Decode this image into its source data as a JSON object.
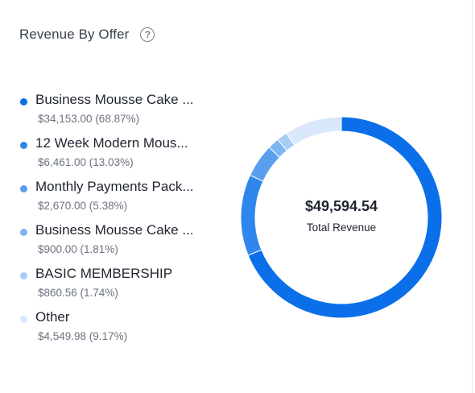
{
  "header": {
    "title": "Revenue By Offer",
    "help_icon": "question-circle-icon"
  },
  "legend": {
    "items": [
      {
        "label": "Business Mousse Cake ...",
        "value_text": "$34,153.00 (68.87%)",
        "color": "#0a6fe8"
      },
      {
        "label": "12 Week Modern Mous...",
        "value_text": "$6,461.00 (13.03%)",
        "color": "#2f86ec"
      },
      {
        "label": "Monthly Payments Pack...",
        "value_text": "$2,670.00 (5.38%)",
        "color": "#5a9fef"
      },
      {
        "label": "Business Mousse Cake ...",
        "value_text": "$900.00 (1.81%)",
        "color": "#7db4f2"
      },
      {
        "label": "BASIC MEMBERSHIP",
        "value_text": "$860.56 (1.74%)",
        "color": "#a8cdf6"
      },
      {
        "label": "Other",
        "value_text": "$4,549.98 (9.17%)",
        "color": "#d9e8fb"
      }
    ]
  },
  "center": {
    "total_value": "$49,594.54",
    "total_label": "Total Revenue"
  },
  "chart_data": {
    "type": "pie",
    "donut": true,
    "title": "Revenue By Offer",
    "categories": [
      "Business Mousse Cake ...",
      "12 Week Modern Mous...",
      "Monthly Payments Pack...",
      "Business Mousse Cake ...",
      "BASIC MEMBERSHIP",
      "Other"
    ],
    "values": [
      34153.0,
      6461.0,
      2670.0,
      900.0,
      860.56,
      4549.98
    ],
    "percentages": [
      68.87,
      13.03,
      5.38,
      1.81,
      1.74,
      9.17
    ],
    "colors": [
      "#0a6fe8",
      "#2f86ec",
      "#5a9fef",
      "#7db4f2",
      "#a8cdf6",
      "#d9e8fb"
    ],
    "total": 49594.54,
    "legend_position": "left"
  }
}
